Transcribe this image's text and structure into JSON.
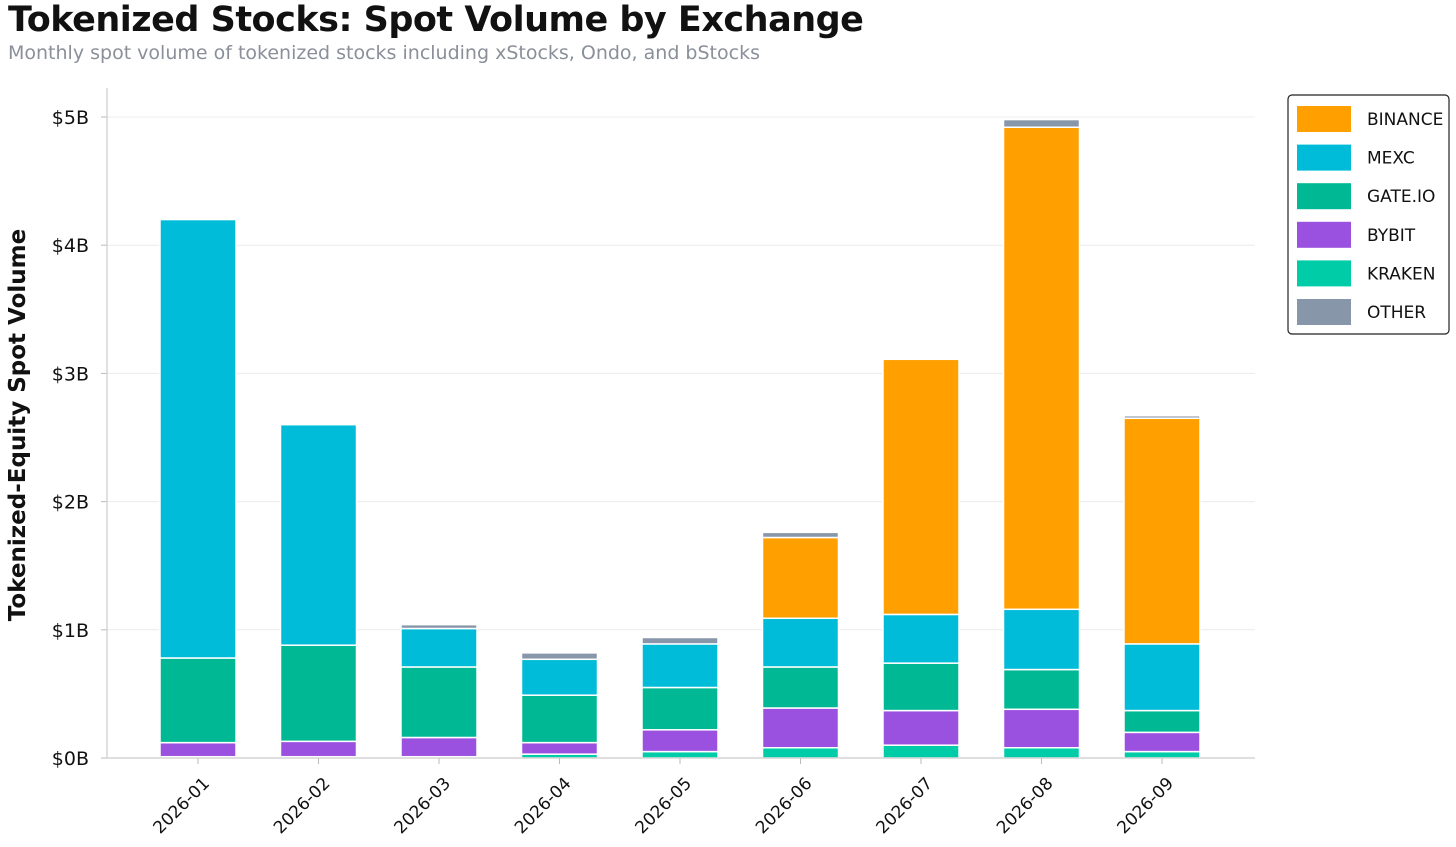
{
  "chart_data": {
    "type": "bar",
    "stacked": true,
    "title": "Tokenized Stocks: Spot Volume by Exchange",
    "subtitle": "Monthly spot volume of tokenized stocks including xStocks, Ondo, and bStocks",
    "xlabel": "",
    "ylabel": "Tokenized-Equity Spot Volume",
    "ylim": [
      0,
      5.25
    ],
    "yticks": [
      0,
      1,
      2,
      3,
      4,
      5
    ],
    "ytick_labels": [
      "$0B",
      "$1B",
      "$2B",
      "$3B",
      "$4B",
      "$5B"
    ],
    "grid": "horizontal",
    "legend_position": "top-right",
    "categories": [
      "2026-01",
      "2026-02",
      "2026-03",
      "2026-04",
      "2026-05",
      "2026-06",
      "2026-07",
      "2026-08",
      "2026-09"
    ],
    "series": [
      {
        "name": "KRAKEN",
        "color": "#00CCA8",
        "values": [
          0.01,
          0.01,
          0.01,
          0.03,
          0.05,
          0.08,
          0.1,
          0.08,
          0.05
        ]
      },
      {
        "name": "BYBIT",
        "color": "#9B51E0",
        "values": [
          0.11,
          0.12,
          0.15,
          0.09,
          0.17,
          0.31,
          0.27,
          0.3,
          0.15
        ]
      },
      {
        "name": "GATE.IO",
        "color": "#00B893",
        "values": [
          0.66,
          0.75,
          0.55,
          0.37,
          0.33,
          0.32,
          0.37,
          0.31,
          0.17
        ]
      },
      {
        "name": "MEXC",
        "color": "#00BCD8",
        "values": [
          3.42,
          1.72,
          0.3,
          0.28,
          0.34,
          0.38,
          0.38,
          0.47,
          0.52
        ]
      },
      {
        "name": "BINANCE",
        "color": "#FFA000",
        "values": [
          0,
          0,
          0,
          0,
          0,
          0.63,
          1.99,
          3.76,
          1.76
        ]
      },
      {
        "name": "OTHER",
        "color": "#8796A8",
        "values": [
          0,
          0,
          0.03,
          0.05,
          0.05,
          0.04,
          0,
          0.06,
          0.02
        ]
      }
    ],
    "legend_order": [
      "BINANCE",
      "MEXC",
      "GATE.IO",
      "BYBIT",
      "KRAKEN",
      "OTHER"
    ]
  }
}
